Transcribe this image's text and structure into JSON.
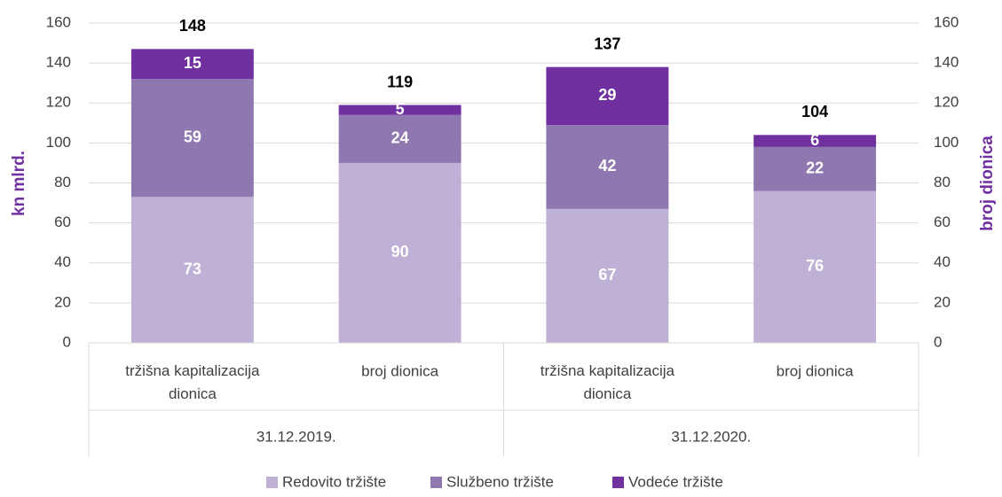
{
  "chart_data": {
    "type": "stacked_bar",
    "y_label": "kn mlrd.",
    "y2_label": "broj dionica",
    "categories": [
      "tržišna kapitalizacija dionica",
      "broj dionica",
      "tržišna kapitalizacija dionica",
      "broj dionica"
    ],
    "groups": [
      "31.12.2019.",
      "31.12.2020."
    ],
    "series": [
      {
        "name": "Redovito tržište",
        "color": "#bfb0d6",
        "values": [
          73,
          90,
          67,
          76
        ]
      },
      {
        "name": "Službeno tržište",
        "color": "#8f78b0",
        "values": [
          59,
          24,
          42,
          22
        ]
      },
      {
        "name": "Vodeće tržište",
        "color": "#7030a0",
        "values": [
          15,
          5,
          29,
          6
        ]
      }
    ],
    "totals": [
      148,
      119,
      137,
      104
    ],
    "ylim": [
      0,
      160
    ],
    "yticks": [
      0,
      20,
      40,
      60,
      80,
      100,
      120,
      140,
      160
    ],
    "y2lim": [
      0,
      160
    ],
    "y2ticks": [
      0,
      20,
      40,
      60,
      80,
      100,
      120,
      140,
      160
    ],
    "grid": true,
    "legend": "bottom"
  }
}
